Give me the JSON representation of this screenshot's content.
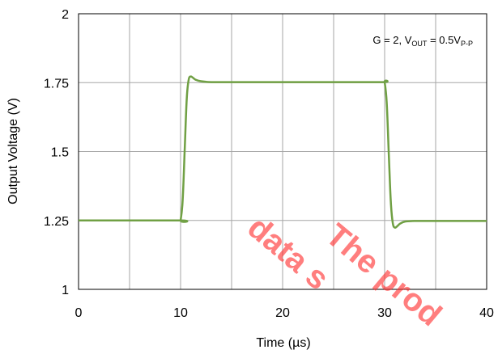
{
  "chart_data": {
    "type": "line",
    "xlabel": "Time (µs)",
    "ylabel": "Output Voltage (V)",
    "xlim": [
      0,
      40
    ],
    "ylim": [
      1,
      2
    ],
    "x_ticks": [
      "0",
      "10",
      "20",
      "30",
      "40"
    ],
    "y_ticks": [
      "1",
      "1.25",
      "1.5",
      "1.75",
      "2"
    ],
    "x_tick_values": [
      0,
      10,
      20,
      30,
      40
    ],
    "y_tick_values": [
      1,
      1.25,
      1.5,
      1.75,
      2
    ],
    "x_grid_values": [
      0,
      5,
      10,
      15,
      20,
      25,
      30,
      35,
      40
    ],
    "grid": true,
    "annotation": {
      "prefix": "G = 2, V",
      "sub1": "OUT",
      "middle": " = 0.5V",
      "sub2": "P-P"
    },
    "series": [
      {
        "color": "#70a044",
        "x": [
          0,
          9.9,
          10.0,
          10.2,
          10.4,
          10.6,
          10.8,
          11.0,
          11.2,
          11.5,
          12.0,
          13.0,
          15.0,
          20.0,
          25.0,
          29.9,
          30.0,
          30.2,
          30.4,
          30.6,
          30.8,
          31.0,
          31.2,
          31.5,
          32.0,
          33.0,
          35.0,
          40.0
        ],
        "y": [
          1.25,
          1.25,
          1.25,
          1.32,
          1.5,
          1.69,
          1.762,
          1.772,
          1.768,
          1.76,
          1.755,
          1.752,
          1.752,
          1.752,
          1.752,
          1.752,
          1.752,
          1.68,
          1.5,
          1.32,
          1.24,
          1.224,
          1.228,
          1.238,
          1.246,
          1.248,
          1.248,
          1.248
        ]
      }
    ]
  },
  "watermark": {
    "lines": [
      "The prod",
      "data s"
    ],
    "color": "#ff2a2a"
  }
}
